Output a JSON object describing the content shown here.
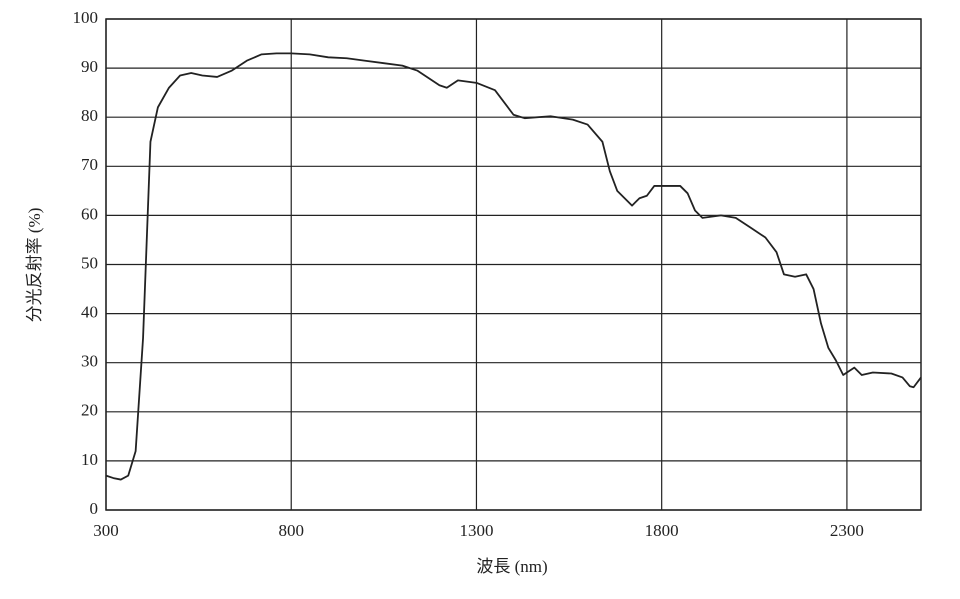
{
  "chart_data": {
    "type": "line",
    "xlabel": "波長 (nm)",
    "ylabel": "分光反射率 (%)",
    "x": [
      300,
      320,
      340,
      360,
      380,
      400,
      420,
      440,
      470,
      500,
      530,
      560,
      600,
      640,
      680,
      720,
      760,
      800,
      850,
      900,
      950,
      1000,
      1050,
      1100,
      1140,
      1170,
      1200,
      1220,
      1250,
      1300,
      1350,
      1400,
      1430,
      1500,
      1560,
      1600,
      1640,
      1660,
      1680,
      1700,
      1720,
      1740,
      1760,
      1780,
      1850,
      1870,
      1890,
      1910,
      1960,
      2000,
      2040,
      2080,
      2110,
      2130,
      2160,
      2190,
      2210,
      2230,
      2250,
      2270,
      2290,
      2300,
      2320,
      2340,
      2370,
      2420,
      2450,
      2470,
      2480,
      2500
    ],
    "values": [
      7,
      6.5,
      6.2,
      7,
      12,
      35,
      75,
      82,
      86,
      88.5,
      89,
      88.5,
      88.2,
      89.5,
      91.5,
      92.8,
      93,
      93,
      92.8,
      92.2,
      92,
      91.5,
      91,
      90.5,
      89.5,
      88,
      86.5,
      86,
      87.5,
      87,
      85.5,
      80.5,
      79.8,
      80.2,
      79.5,
      78.5,
      75,
      69,
      65,
      63.5,
      62,
      63.5,
      64,
      66,
      66,
      64.5,
      61,
      59.5,
      60,
      59.5,
      57.5,
      55.5,
      52.5,
      48,
      47.5,
      48,
      45,
      38,
      33,
      30.5,
      27.5,
      28,
      29,
      27.5,
      28,
      27.8,
      27,
      25.2,
      25,
      27
    ],
    "color": "#222222",
    "xlim": [
      300,
      2500
    ],
    "xticks": [
      300,
      800,
      1300,
      1800,
      2300
    ],
    "ylim": [
      0,
      100
    ],
    "yticks": [
      0,
      10,
      20,
      30,
      40,
      50,
      60,
      70,
      80,
      90,
      100
    ],
    "grid": true
  }
}
